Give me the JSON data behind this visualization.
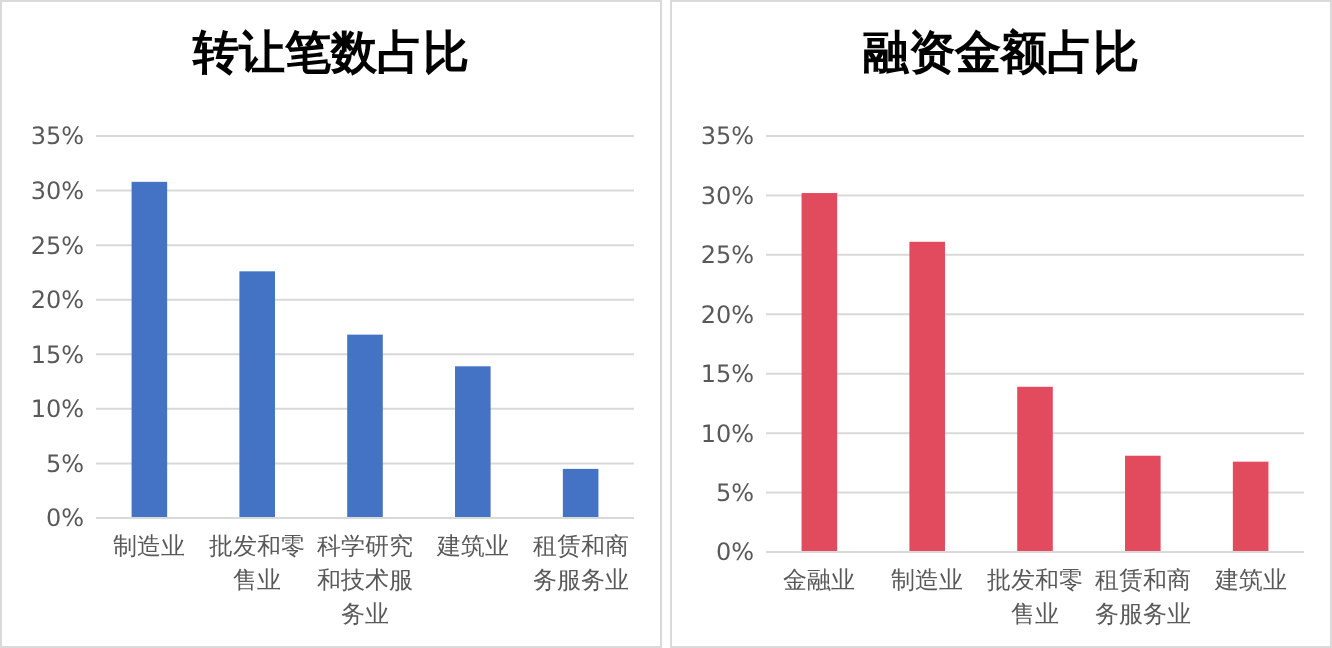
{
  "chart_data": [
    {
      "type": "bar",
      "title": "转让笔数占比",
      "categories": [
        "制造业",
        "批发和零售业",
        "科学研究和技术服务业",
        "建筑业",
        "租赁和商务服务业"
      ],
      "values": [
        30.8,
        22.6,
        16.8,
        13.9,
        4.5
      ],
      "color": "#4472c4",
      "ylim": [
        0,
        35
      ],
      "yticks": [
        {
          "value": 0,
          "label": "0%"
        },
        {
          "value": 5,
          "label": "5%"
        },
        {
          "value": 10,
          "label": "10%"
        },
        {
          "value": 15,
          "label": "15%"
        },
        {
          "value": 20,
          "label": "20%"
        },
        {
          "value": 25,
          "label": "25%"
        },
        {
          "value": 30,
          "label": "30%"
        },
        {
          "value": 35,
          "label": "35%"
        }
      ],
      "grid": "y"
    },
    {
      "type": "bar",
      "title": "融资金额占比",
      "categories": [
        "金融业",
        "制造业",
        "批发和零售业",
        "租赁和商务服务业",
        "建筑业"
      ],
      "values": [
        30.2,
        26.1,
        13.9,
        8.1,
        7.6
      ],
      "color": "#e24a5e",
      "ylim": [
        0,
        35
      ],
      "yticks": [
        {
          "value": 0,
          "label": "0%"
        },
        {
          "value": 5,
          "label": "5%"
        },
        {
          "value": 10,
          "label": "10%"
        },
        {
          "value": 15,
          "label": "15%"
        },
        {
          "value": 20,
          "label": "20%"
        },
        {
          "value": 25,
          "label": "25%"
        },
        {
          "value": 30,
          "label": "30%"
        },
        {
          "value": 35,
          "label": "35%"
        }
      ],
      "grid": "y"
    }
  ]
}
